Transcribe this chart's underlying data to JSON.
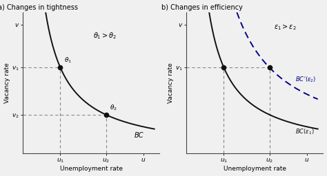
{
  "title_a": "a) Changes in tightness",
  "title_b": "b) Changes in efficiency",
  "xlabel": "Unemployment rate",
  "ylabel": "Vacancy rate",
  "curve_color": "#111111",
  "dashed_color": "#888888",
  "blue_dashed_color": "#00008B",
  "point_color": "#111111",
  "u1": 0.28,
  "u2": 0.62,
  "v1": 0.62,
  "v2": 0.28,
  "u_tick": 0.9,
  "v_tick": 0.93,
  "x_max": 1.05,
  "y_max": 1.05
}
